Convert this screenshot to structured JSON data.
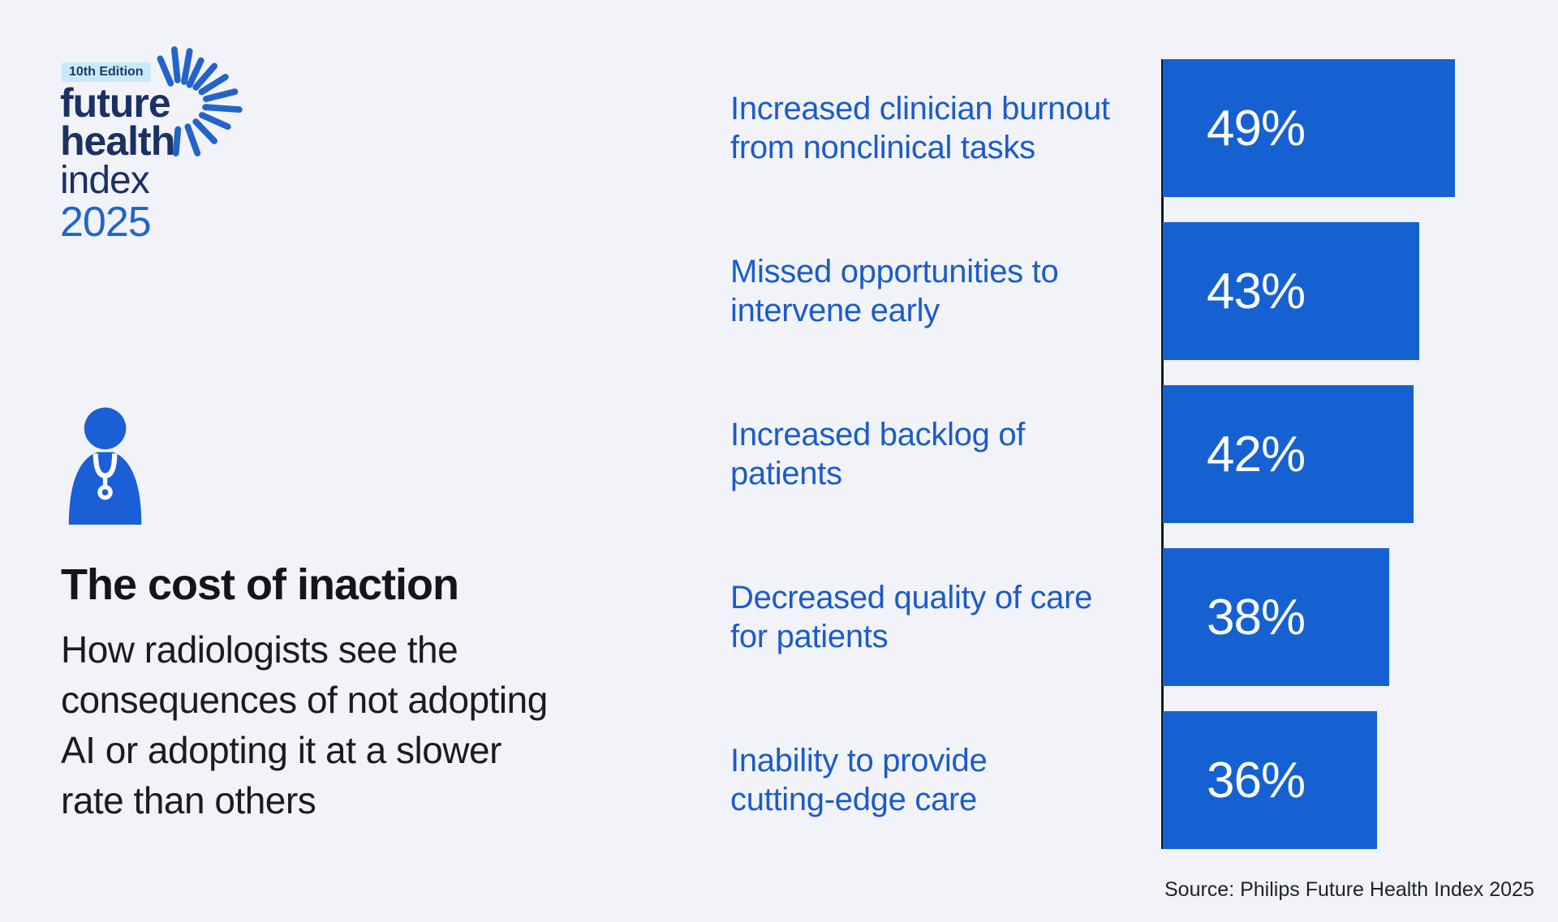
{
  "logo": {
    "edition_badge": "10th Edition",
    "word1": "future",
    "word2": "health",
    "word3": "index",
    "word4": "2025"
  },
  "intro": {
    "title": "The cost of inaction",
    "subtitle": "How radiologists see the consequences of not adopting AI or adopting it at a slower rate than others",
    "subtitle_lines": [
      "How radiologists see the",
      "consequences of not adopting",
      "AI or adopting it at a slower",
      "rate than others"
    ]
  },
  "chart": {
    "bars": [
      {
        "line1": "Increased clinician burnout",
        "line2": "from nonclinical tasks",
        "value": 49,
        "value_label": "49%"
      },
      {
        "line1": "Missed opportunities to",
        "line2": "intervene early",
        "value": 43,
        "value_label": "43%"
      },
      {
        "line1": "Increased backlog of",
        "line2": "patients",
        "value": 42,
        "value_label": "42%"
      },
      {
        "line1": "Decreased quality of care",
        "line2": "for patients",
        "value": 38,
        "value_label": "38%"
      },
      {
        "line1": "Inability to provide",
        "line2": "cutting-edge care",
        "value": 36,
        "value_label": "36%"
      }
    ],
    "source": "Source: Philips Future Health Index 2025"
  },
  "chart_data": {
    "type": "bar",
    "orientation": "horizontal",
    "title": "The cost of inaction",
    "subtitle": "How radiologists see the consequences of not adopting AI or adopting it at a slower rate than others",
    "categories": [
      "Increased clinician burnout from nonclinical tasks",
      "Missed opportunities to intervene early",
      "Increased backlog of patients",
      "Decreased quality of care for patients",
      "Inability to provide cutting-edge care"
    ],
    "values": [
      49,
      43,
      42,
      38,
      36
    ],
    "value_labels": [
      "49%",
      "43%",
      "42%",
      "38%",
      "36%"
    ],
    "unit": "%",
    "xlim": [
      0,
      49
    ],
    "grid": false,
    "legend": false,
    "source": "Source: Philips Future Health Index 2025"
  },
  "colors": {
    "background": "#F1F3F8",
    "bar_blue": "#1561D2",
    "label_blue": "#1C5BC9",
    "logo_navy": "#1C3163",
    "logo_year_blue": "#2164CE",
    "badge_background": "#C9E9F8",
    "badge_text": "#1C3A66",
    "axis_line": "#0E1A29",
    "title_text": "#131518",
    "body_text": "#1A1C1F",
    "bar_value_text": "#FFFFFF"
  }
}
